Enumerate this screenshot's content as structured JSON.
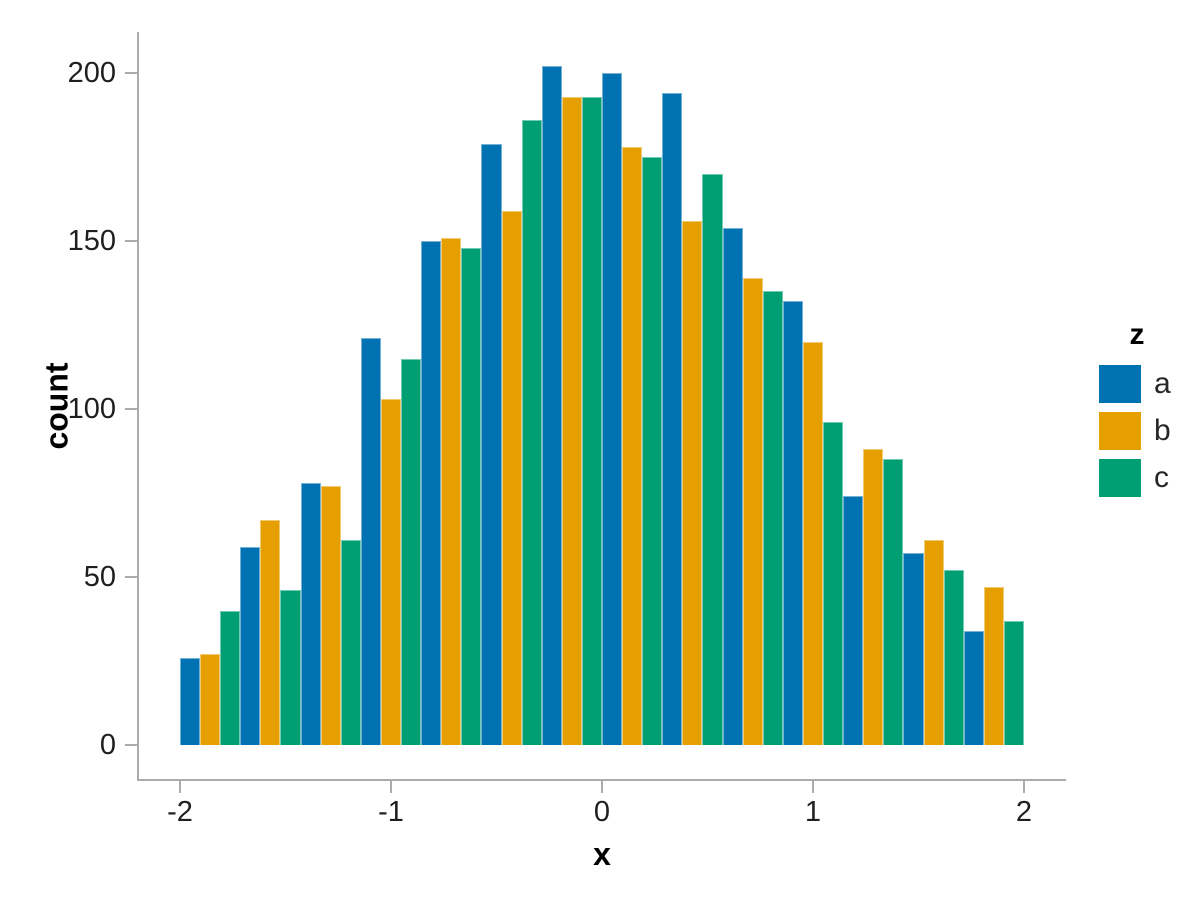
{
  "chart_data": {
    "type": "bar",
    "subtype": "grouped-histogram",
    "title": "",
    "xlabel": "x",
    "ylabel": "count",
    "legend_title": "z",
    "legend_position": "right",
    "grid": false,
    "x_range": [
      -2,
      2
    ],
    "ylim": [
      0,
      200
    ],
    "x_ticks": [
      -2,
      -1,
      0,
      1,
      2
    ],
    "x_tick_labels": [
      "-2",
      "-1",
      "0",
      "1",
      "2"
    ],
    "y_ticks": [
      0,
      50,
      100,
      150,
      200
    ],
    "y_tick_labels": [
      "0",
      "50",
      "100",
      "150",
      "200"
    ],
    "n_bins": 14,
    "bin_edges": [
      -2,
      -1.714,
      -1.429,
      -1.143,
      -0.857,
      -0.571,
      -0.286,
      0,
      0.286,
      0.571,
      0.857,
      1.143,
      1.429,
      1.714,
      2
    ],
    "series": [
      {
        "name": "a",
        "color": "#0072B2",
        "values": [
          26,
          59,
          78,
          121,
          150,
          179,
          202,
          200,
          194,
          154,
          132,
          74,
          57,
          34
        ]
      },
      {
        "name": "b",
        "color": "#E69F00",
        "values": [
          27,
          67,
          77,
          103,
          151,
          159,
          193,
          178,
          156,
          139,
          120,
          88,
          61,
          47
        ]
      },
      {
        "name": "c",
        "color": "#009E73",
        "values": [
          40,
          46,
          61,
          115,
          148,
          186,
          193,
          175,
          170,
          135,
          96,
          85,
          52,
          37
        ]
      }
    ],
    "colors": {
      "a": "#0072B2",
      "b": "#E69F00",
      "c": "#009E73"
    },
    "axis_color": "#ababab",
    "tick_text_color": "#1f1f1f"
  }
}
